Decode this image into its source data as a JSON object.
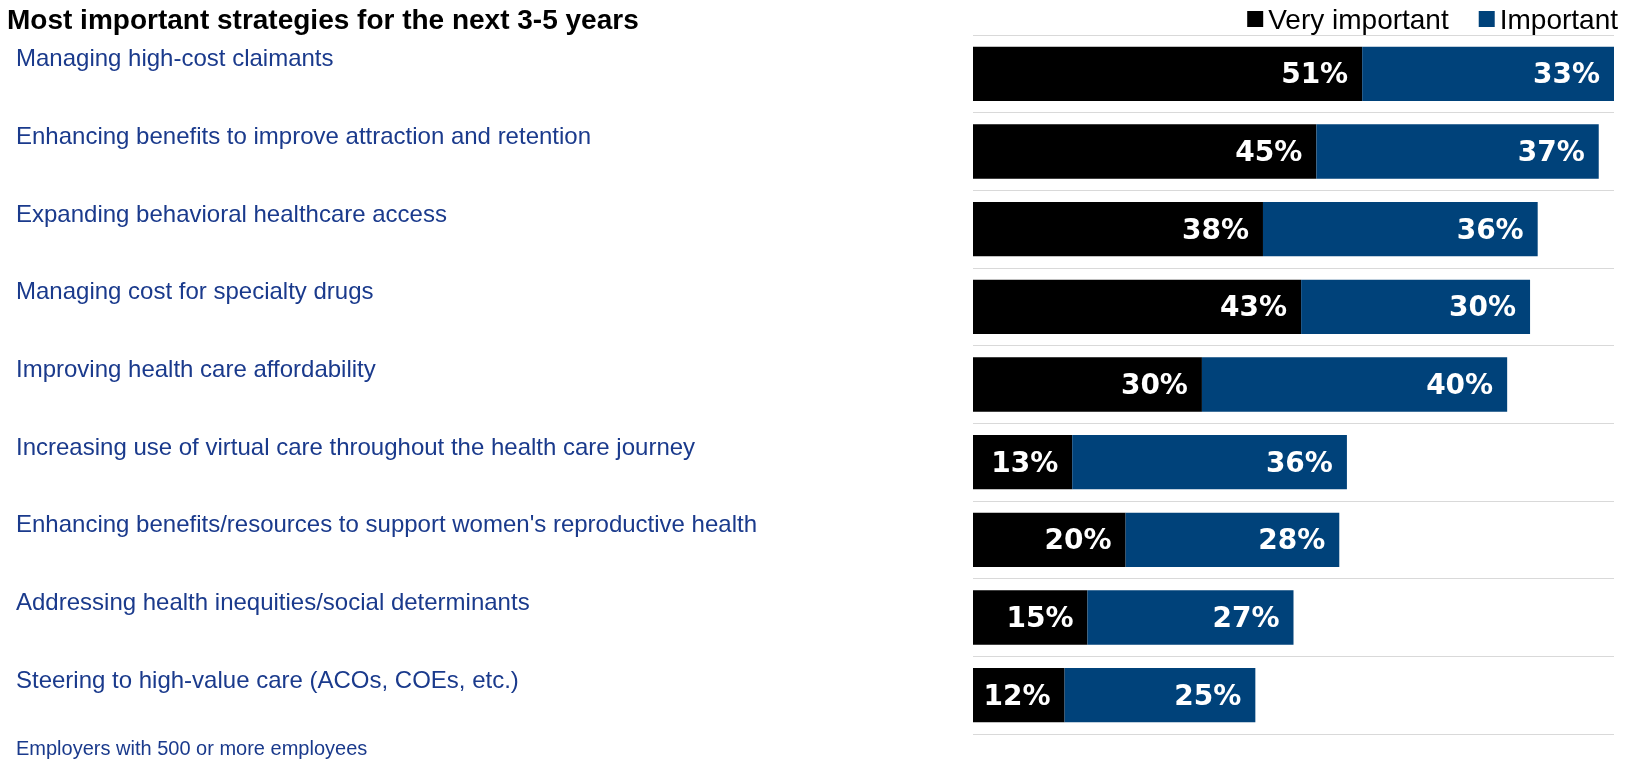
{
  "chart_data": {
    "type": "bar",
    "orientation": "horizontal",
    "stacked": true,
    "title": "Most important strategies for the next 3-5 years",
    "categories": [
      "Managing high-cost claimants",
      "Enhancing benefits to improve attraction and retention",
      "Expanding behavioral healthcare access",
      "Managing cost for specialty drugs",
      "Improving health care affordability",
      "Increasing use of virtual care throughout the health care journey",
      "Enhancing benefits/resources to support women's reproductive health",
      "Addressing health inequities/social determinants",
      "Steering to high-value care (ACOs, COEs, etc.)"
    ],
    "series": [
      {
        "name": "Very important",
        "color": "#000000",
        "values": [
          51,
          45,
          38,
          43,
          30,
          13,
          20,
          15,
          12
        ],
        "value_labels": [
          "51%",
          "45%",
          "38%",
          "43%",
          "30%",
          "13%",
          "20%",
          "15%",
          "12%"
        ]
      },
      {
        "name": "Important",
        "color": "#00427a",
        "values": [
          33,
          37,
          36,
          30,
          40,
          36,
          28,
          27,
          25
        ],
        "value_labels": [
          "33%",
          "37%",
          "36%",
          "30%",
          "40%",
          "36%",
          "28%",
          "27%",
          "25%"
        ]
      }
    ],
    "legend": "top right",
    "grid": "y",
    "annotations": [
      "Employers with 500 or more employees"
    ]
  }
}
